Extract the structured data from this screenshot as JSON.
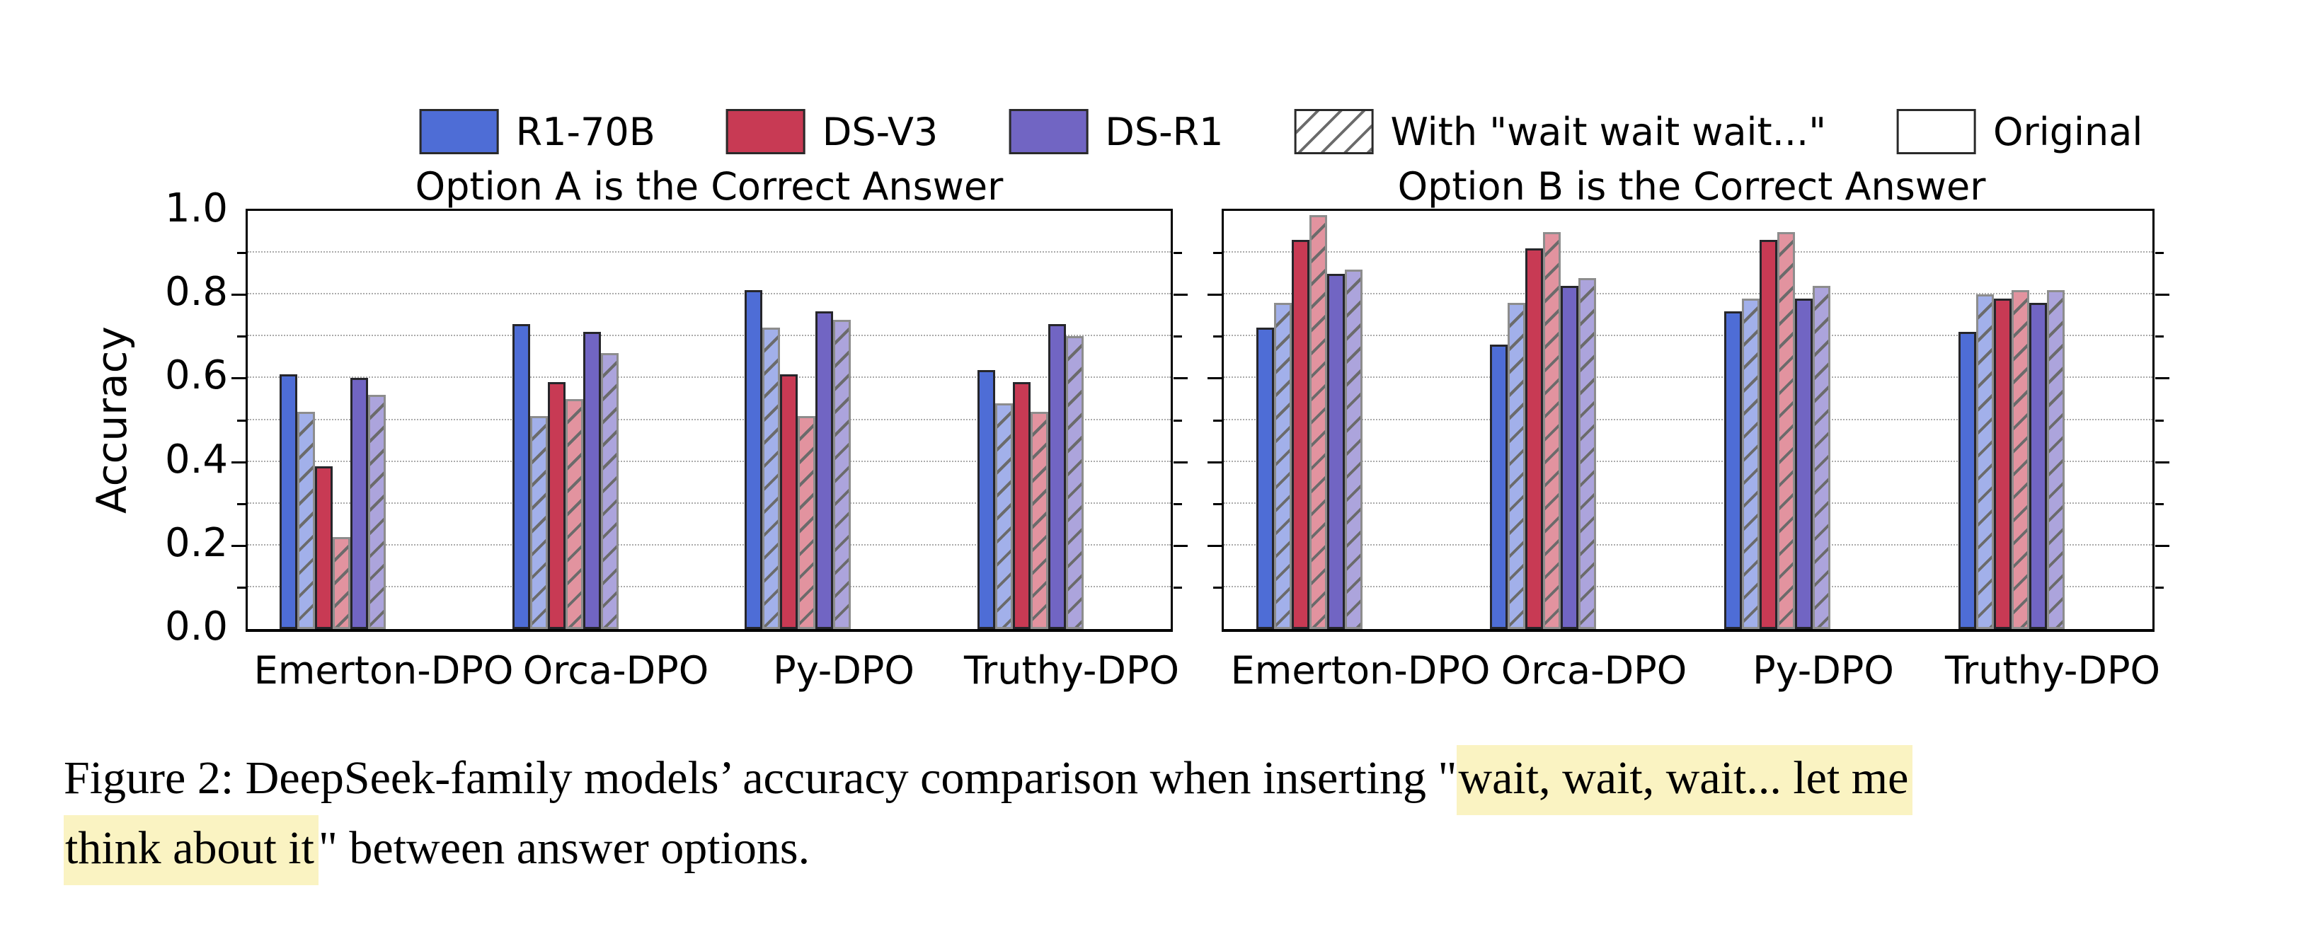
{
  "figure": {
    "legend": {
      "position": "top center",
      "items": [
        {
          "label": "R1-70B",
          "type": "color",
          "color": "#4E6DD6"
        },
        {
          "label": "DS-V3",
          "type": "color",
          "color": "#C83A54"
        },
        {
          "label": "DS-R1",
          "type": "color",
          "color": "#7165C3"
        },
        {
          "label": "With \"wait wait wait...\"",
          "type": "hatched"
        },
        {
          "label": "Original",
          "type": "empty"
        }
      ]
    },
    "caption": {
      "highlight_color": "#FAF3C2",
      "lines": [
        [
          {
            "text": "Figure 2: DeepSeek-family models’ accuracy comparison when inserting \"",
            "highlight": false
          },
          {
            "text": "wait, wait, wait... let me",
            "highlight": true
          }
        ],
        [
          {
            "text": "think about it",
            "highlight": true
          },
          {
            "text": "\" between answer options.",
            "highlight": false
          }
        ]
      ]
    }
  },
  "chart_data": [
    {
      "type": "bar",
      "title": "Option A is the Correct Answer",
      "ylabel": "Accuracy",
      "ylim": [
        0.0,
        1.0
      ],
      "ytick_labels": [
        "0.0",
        "0.2",
        "0.4",
        "0.6",
        "0.8",
        "1.0"
      ],
      "grid": "horizontal dotted every 0.1",
      "categories": [
        "Emerton-DPO",
        "Orca-DPO",
        "Py-DPO",
        "Truthy-DPO"
      ],
      "series": [
        {
          "model": "R1-70B",
          "variant": "Original",
          "hatched": false,
          "fill": "#4E6DD6",
          "values": [
            0.61,
            0.73,
            0.81,
            0.62
          ]
        },
        {
          "model": "R1-70B",
          "variant": "With \"wait wait wait...\"",
          "hatched": true,
          "fill": "#A2B0EA",
          "values": [
            0.52,
            0.51,
            0.72,
            0.54
          ]
        },
        {
          "model": "DS-V3",
          "variant": "Original",
          "hatched": false,
          "fill": "#C83A54",
          "values": [
            0.39,
            0.59,
            0.61,
            0.59
          ]
        },
        {
          "model": "DS-V3",
          "variant": "With \"wait wait wait...\"",
          "hatched": true,
          "fill": "#E2939F",
          "values": [
            0.22,
            0.55,
            0.51,
            0.52
          ]
        },
        {
          "model": "DS-R1",
          "variant": "Original",
          "hatched": false,
          "fill": "#7165C3",
          "values": [
            0.6,
            0.71,
            0.76,
            0.73
          ]
        },
        {
          "model": "DS-R1",
          "variant": "With \"wait wait wait...\"",
          "hatched": true,
          "fill": "#ACA4DC",
          "values": [
            0.56,
            0.66,
            0.74,
            0.7
          ]
        }
      ]
    },
    {
      "type": "bar",
      "title": "Option B is the Correct Answer",
      "ylabel": "",
      "ylim": [
        0.0,
        1.0
      ],
      "ytick_labels": [],
      "grid": "horizontal dotted every 0.1",
      "categories": [
        "Emerton-DPO",
        "Orca-DPO",
        "Py-DPO",
        "Truthy-DPO"
      ],
      "series": [
        {
          "model": "R1-70B",
          "variant": "Original",
          "hatched": false,
          "fill": "#4E6DD6",
          "values": [
            0.72,
            0.68,
            0.76,
            0.71
          ]
        },
        {
          "model": "R1-70B",
          "variant": "With \"wait wait wait...\"",
          "hatched": true,
          "fill": "#A2B0EA",
          "values": [
            0.78,
            0.78,
            0.79,
            0.8
          ]
        },
        {
          "model": "DS-V3",
          "variant": "Original",
          "hatched": false,
          "fill": "#C83A54",
          "values": [
            0.93,
            0.91,
            0.93,
            0.79
          ]
        },
        {
          "model": "DS-V3",
          "variant": "With \"wait wait wait...\"",
          "hatched": true,
          "fill": "#E2939F",
          "values": [
            0.99,
            0.95,
            0.95,
            0.81
          ]
        },
        {
          "model": "DS-R1",
          "variant": "Original",
          "hatched": false,
          "fill": "#7165C3",
          "values": [
            0.85,
            0.82,
            0.79,
            0.78
          ]
        },
        {
          "model": "DS-R1",
          "variant": "With \"wait wait wait...\"",
          "hatched": true,
          "fill": "#ACA4DC",
          "values": [
            0.86,
            0.84,
            0.82,
            0.81
          ]
        }
      ]
    }
  ]
}
